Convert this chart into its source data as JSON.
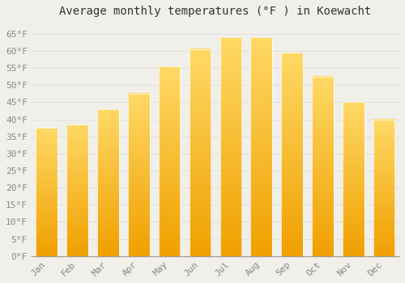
{
  "title": "Average monthly temperatures (°F ) in Koewacht",
  "months": [
    "Jan",
    "Feb",
    "Mar",
    "Apr",
    "May",
    "Jun",
    "Jul",
    "Aug",
    "Sep",
    "Oct",
    "Nov",
    "Dec"
  ],
  "values": [
    37.5,
    38.5,
    43.0,
    47.5,
    55.5,
    60.5,
    64.0,
    64.0,
    59.5,
    52.5,
    45.0,
    40.0
  ],
  "bar_color_bottom": "#F0A000",
  "bar_color_top": "#FFD966",
  "bar_edge_color": "#E8E8E8",
  "background_color": "#F0EFEA",
  "ylim": [
    0,
    68
  ],
  "yticks": [
    0,
    5,
    10,
    15,
    20,
    25,
    30,
    35,
    40,
    45,
    50,
    55,
    60,
    65
  ],
  "title_fontsize": 10,
  "tick_fontsize": 8,
  "grid_color": "#DDDDDD",
  "tick_color": "#888888"
}
